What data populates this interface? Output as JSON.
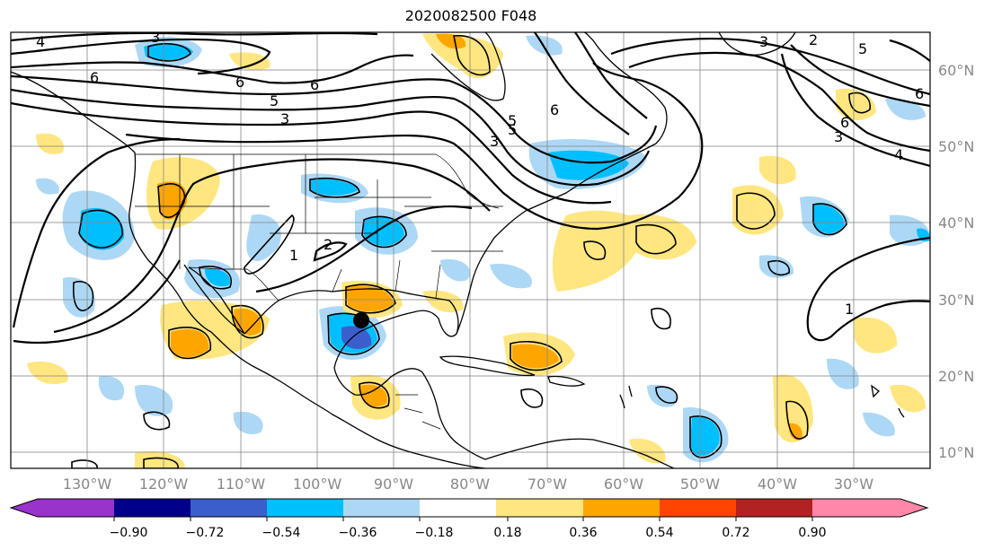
{
  "title": "2020082500 F048",
  "colors": {
    "c_m09": "#9933cc",
    "c_m072": "#00008b",
    "c_m054": "#3a5fcd",
    "c_m036": "#00bfff",
    "c_m018": "#add8f5",
    "c_0": "#ffffff",
    "c_p018": "#ffe680",
    "c_p036": "#ffa500",
    "c_p054": "#ff4500",
    "c_p072": "#b22222",
    "c_p09": "#ff88aa"
  },
  "lon_labels": [
    "130°W",
    "120°W",
    "110°W",
    "100°W",
    "90°W",
    "80°W",
    "70°W",
    "60°W",
    "50°W",
    "40°W",
    "30°W"
  ],
  "lat_labels": [
    "60°N",
    "50°N",
    "40°N",
    "30°N",
    "20°N",
    "10°N"
  ],
  "colorbar_ticks": [
    "−0.90",
    "−0.72",
    "−0.54",
    "−0.36",
    "−0.18",
    "0.18",
    "0.36",
    "0.54",
    "0.72",
    "0.90"
  ],
  "contour_labels": [
    "4",
    "3",
    "6",
    "6",
    "5",
    "6",
    "3",
    "3",
    "5",
    "6",
    "3",
    "5",
    "6",
    "4",
    "3",
    "2",
    "2",
    "1",
    "1",
    "6",
    "5"
  ],
  "marker": {
    "name": "storm-center",
    "lon": -93.5,
    "lat": 27.5
  }
}
